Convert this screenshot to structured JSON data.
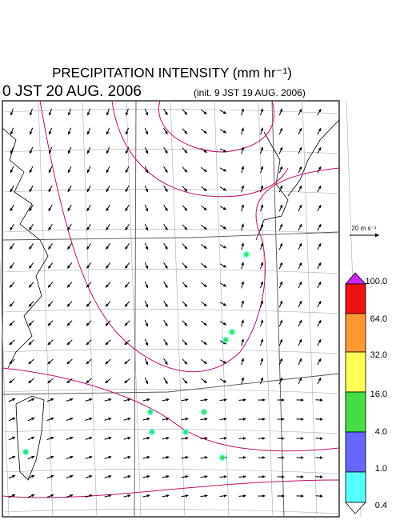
{
  "header": {
    "title": "PRECIPITATION INTENSITY (mm hr⁻¹)",
    "valid_time": "0 JST 20 AUG. 2006",
    "init_time": "(init. 9 JST 19 AUG. 2006)"
  },
  "wind_scale": {
    "label": "20 m s⁻¹"
  },
  "colorbar": {
    "labels": [
      "100.0",
      "64.0",
      "32.0",
      "16.0",
      "4.0",
      "1.0",
      "0.4"
    ],
    "colors": [
      "#cc22ee",
      "#ee1111",
      "#ff9933",
      "#ffff55",
      "#44dd44",
      "#6666ff",
      "#55ffff",
      "#ffffff"
    ]
  }
}
